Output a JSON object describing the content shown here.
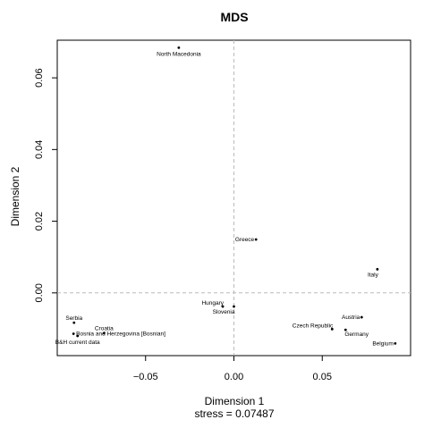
{
  "chart_data": {
    "type": "scatter",
    "title": "MDS",
    "xlabel": "Dimension 1",
    "ylabel": "Dimension 2",
    "subtitle": "stress = 0.07487",
    "xlim": [
      -0.1,
      0.1
    ],
    "ylim": [
      -0.0175,
      0.0705
    ],
    "x_ticks": [
      -0.05,
      0.0,
      0.05
    ],
    "x_tick_labels": [
      "−0.05",
      "0.00",
      "0.05"
    ],
    "y_ticks": [
      0.0,
      0.02,
      0.04,
      0.06
    ],
    "y_tick_labels": [
      "0.00",
      "0.02",
      "0.04",
      "0.06"
    ],
    "reference_lines": {
      "x": 0,
      "y": 0,
      "style": "dashed"
    },
    "grid": false,
    "points": [
      {
        "label": "North Macedonia",
        "x": -0.0312,
        "y": 0.0684,
        "label_pos": "below"
      },
      {
        "label": "Greece",
        "x": 0.0125,
        "y": 0.0149,
        "label_pos": "left"
      },
      {
        "label": "Italy",
        "x": 0.0812,
        "y": 0.0066,
        "label_pos": "below-left"
      },
      {
        "label": "Hungary",
        "x": -0.0063,
        "y": -0.0038,
        "label_pos": "above-left"
      },
      {
        "label": "Slovenia",
        "x": 0.0,
        "y": -0.0038,
        "label_pos": "below-left"
      },
      {
        "label": "Serbia",
        "x": -0.0905,
        "y": -0.0083,
        "label_pos": "above"
      },
      {
        "label": "Croatia",
        "x": -0.0735,
        "y": -0.0112,
        "label_pos": "above"
      },
      {
        "label": "Bosnia and Herzegovina [Bosnian]",
        "x": -0.0908,
        "y": -0.0114,
        "label_pos": "right"
      },
      {
        "label": "B&H current data",
        "x": -0.0885,
        "y": -0.012,
        "label_pos": "below"
      },
      {
        "label": "Austria",
        "x": 0.0723,
        "y": -0.0068,
        "label_pos": "left"
      },
      {
        "label": "Czech Republic",
        "x": 0.0556,
        "y": -0.0101,
        "label_pos": "above-left"
      },
      {
        "label": "Germany",
        "x": 0.0632,
        "y": -0.0103,
        "label_pos": "below-right"
      },
      {
        "label": "Belgium",
        "x": 0.0913,
        "y": -0.0141,
        "label_pos": "left"
      }
    ]
  }
}
